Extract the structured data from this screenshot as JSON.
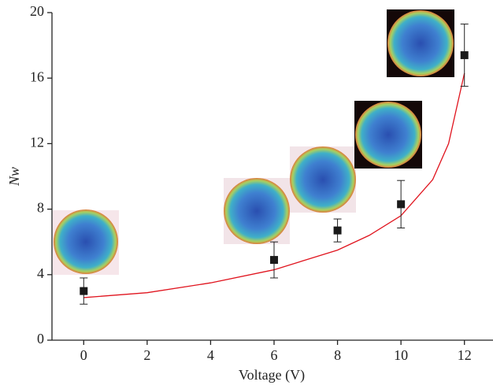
{
  "chart_data": {
    "type": "scatter",
    "x_label": "Voltage (V)",
    "y_label": "Nw",
    "x": [
      0,
      6,
      8,
      10,
      12
    ],
    "values": [
      3.0,
      4.9,
      6.7,
      8.3,
      17.4
    ],
    "errors": [
      0.8,
      1.1,
      0.7,
      1.45,
      1.9
    ],
    "color": "#1a1a1a",
    "fit": {
      "x": [
        0,
        2,
        4,
        6,
        8,
        9,
        10,
        11,
        11.5,
        12
      ],
      "y": [
        2.6,
        2.9,
        3.5,
        4.3,
        5.5,
        6.4,
        7.6,
        9.8,
        12,
        16.3
      ],
      "color": "#e0141e"
    },
    "xlim": [
      -1,
      13
    ],
    "ylim": [
      0,
      20
    ],
    "xticks": [
      0,
      2,
      4,
      6,
      8,
      10,
      12
    ],
    "yticks": [
      0,
      4,
      8,
      12,
      16,
      20
    ]
  }
}
